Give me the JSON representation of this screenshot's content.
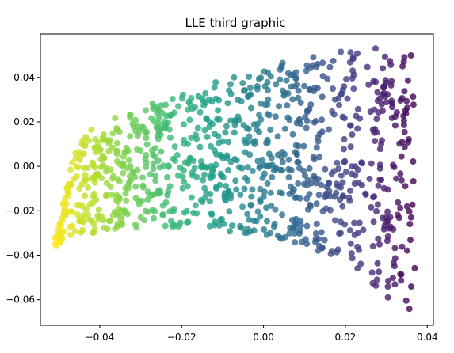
{
  "chart_data": {
    "type": "scatter",
    "title": "LLE third graphic",
    "xlabel": "",
    "ylabel": "",
    "xlim": [
      -0.0545,
      0.0415
    ],
    "ylim": [
      -0.0715,
      0.0595
    ],
    "xticks": [
      -0.04,
      -0.02,
      0.0,
      0.02,
      0.04
    ],
    "xtick_labels": [
      "−0.04",
      "−0.02",
      "0.00",
      "0.02",
      "0.04"
    ],
    "yticks": [
      0.04,
      0.02,
      0.0,
      -0.02,
      -0.04,
      -0.06
    ],
    "ytick_labels": [
      "0.04",
      "0.02",
      "0.00",
      "−0.02",
      "−0.04",
      "−0.06"
    ],
    "grid": false,
    "legend": "none",
    "colormap": "viridis (reversed along x: yellow at left, purple at right)",
    "marker_alpha": 0.8,
    "point_count": 1000,
    "domain_note_outline": {
      "x_range": [
        -0.051,
        0.037
      ],
      "top_edge": [
        [
          -0.051,
          -0.03
        ],
        [
          -0.045,
          0.015
        ],
        [
          -0.035,
          0.023
        ],
        [
          -0.025,
          0.03
        ],
        [
          -0.015,
          0.036
        ],
        [
          -0.005,
          0.042
        ],
        [
          0.005,
          0.047
        ],
        [
          0.015,
          0.051
        ],
        [
          0.025,
          0.053
        ],
        [
          0.037,
          0.054
        ]
      ],
      "bottom_edge": [
        [
          -0.051,
          -0.036
        ],
        [
          -0.045,
          -0.031
        ],
        [
          -0.035,
          -0.028
        ],
        [
          -0.025,
          -0.027
        ],
        [
          -0.015,
          -0.028
        ],
        [
          -0.005,
          -0.03
        ],
        [
          0.005,
          -0.033
        ],
        [
          0.015,
          -0.039
        ],
        [
          0.025,
          -0.05
        ],
        [
          0.03,
          -0.06
        ],
        [
          0.037,
          -0.066
        ]
      ]
    }
  }
}
